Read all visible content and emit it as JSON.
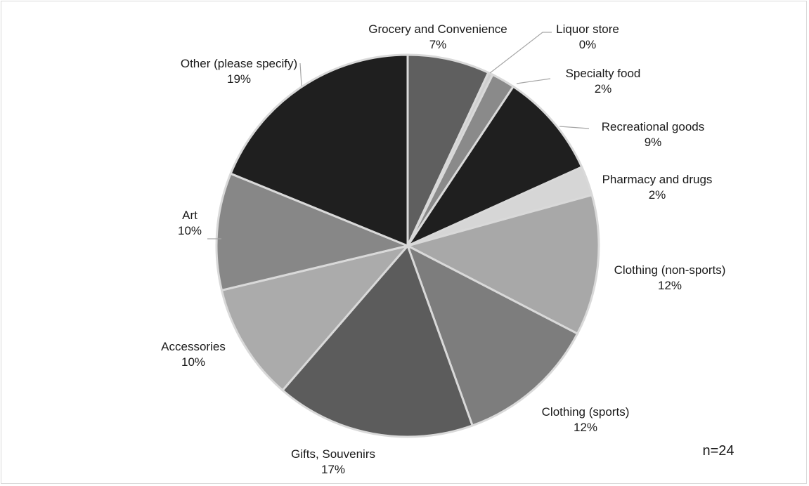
{
  "chart_data": {
    "type": "pie",
    "note": "n=24",
    "slices": [
      {
        "label": "Grocery and Convenience",
        "value": 7,
        "pct_label": "7%",
        "color": "#5f5f5f"
      },
      {
        "label": "Liquor store",
        "value": 0.4,
        "pct_label": "0%",
        "color": "#cfcfcf"
      },
      {
        "label": "Specialty food",
        "value": 2,
        "pct_label": "2%",
        "color": "#8a8a8a"
      },
      {
        "label": "Recreational goods",
        "value": 9,
        "pct_label": "9%",
        "color": "#1f1f1f"
      },
      {
        "label": "Pharmacy and drugs",
        "value": 2.5,
        "pct_label": "2%",
        "color": "#d6d6d6"
      },
      {
        "label": "Clothing (non-sports)",
        "value": 12,
        "pct_label": "12%",
        "color": "#a8a8a8"
      },
      {
        "label": "Clothing (sports)",
        "value": 12,
        "pct_label": "12%",
        "color": "#7d7d7d"
      },
      {
        "label": "Gifts, Souvenirs",
        "value": 17,
        "pct_label": "17%",
        "color": "#5c5c5c"
      },
      {
        "label": "Accessories",
        "value": 10,
        "pct_label": "10%",
        "color": "#ababab"
      },
      {
        "label": "Art",
        "value": 10,
        "pct_label": "10%",
        "color": "#878787"
      },
      {
        "label": "Other (please specify)",
        "value": 19,
        "pct_label": "19%",
        "color": "#1f1f1f"
      }
    ]
  }
}
